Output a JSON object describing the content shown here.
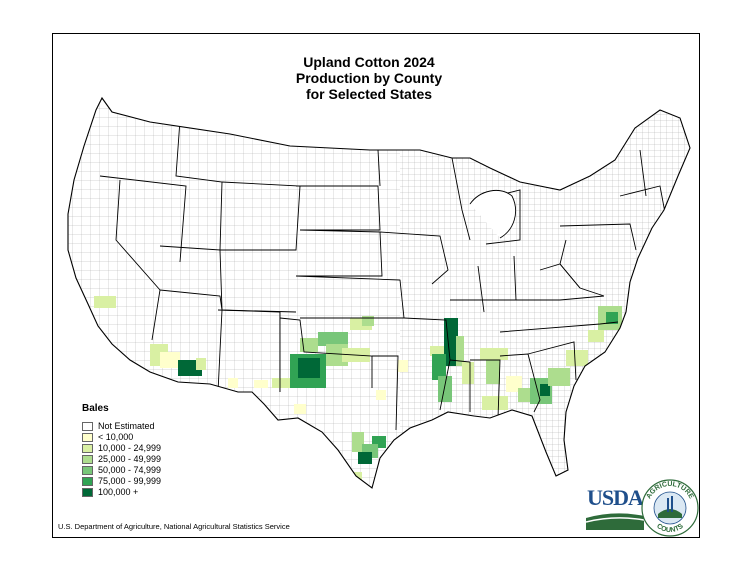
{
  "map": {
    "title_lines": [
      "Upland Cotton 2024",
      "Production by County",
      "for Selected States"
    ],
    "credit": "U.S. Department of Agriculture, National Agricultural Statistics Service"
  },
  "legend": {
    "title": "Bales",
    "items": [
      {
        "label": "Not Estimated",
        "color": "#ffffff"
      },
      {
        "label": "< 10,000",
        "color": "#ffffcc"
      },
      {
        "label": "10,000 - 24,999",
        "color": "#d9f0a3"
      },
      {
        "label": "25,000 - 49,999",
        "color": "#addd8e"
      },
      {
        "label": "50,000 - 74,999",
        "color": "#78c679"
      },
      {
        "label": "75,000 - 99,999",
        "color": "#31a354"
      },
      {
        "label": "100,000 +",
        "color": "#006837"
      }
    ]
  },
  "logos": {
    "usda": "USDA",
    "seal_top": "AGRICULTURE",
    "seal_bottom": "COUNTS"
  },
  "colors": {
    "state_border": "#000000",
    "county_border": "#888888",
    "usda_blue": "#1f4f8b",
    "usda_green": "#2e6b3a"
  }
}
